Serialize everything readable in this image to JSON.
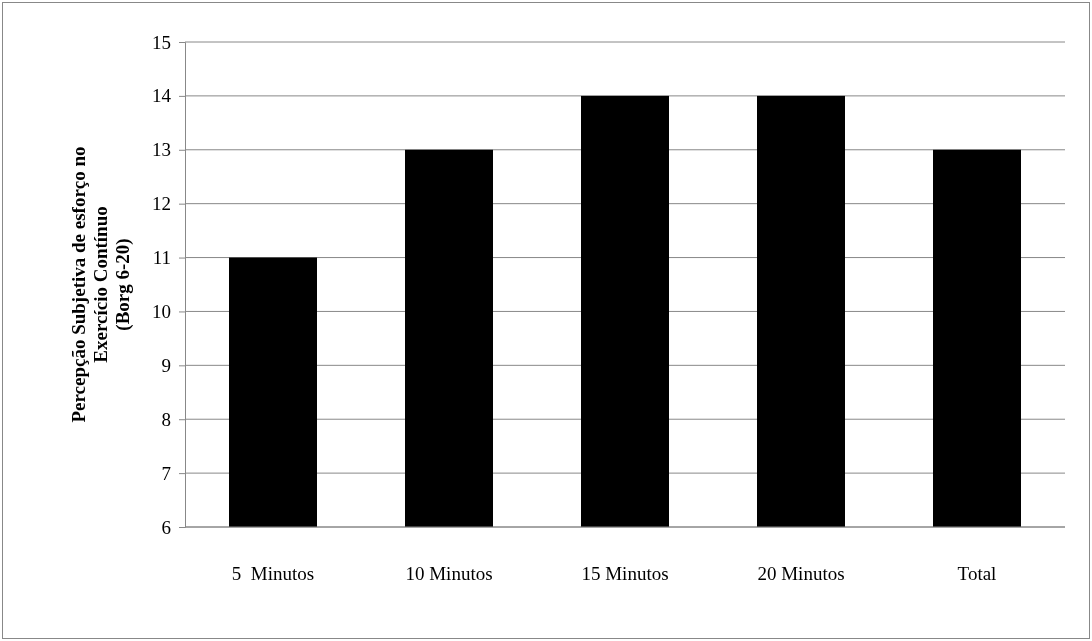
{
  "chart_data": {
    "type": "bar",
    "categories": [
      "5  Minutos",
      "10 Minutos",
      "15 Minutos",
      "20 Minutos",
      "Total"
    ],
    "values": [
      11,
      13,
      14,
      14,
      13
    ],
    "color": "#000000",
    "ylabel": "Percepção Subjetiva de esforço no\nExercício Contínuo\n(Borg 6-20)",
    "ylim": [
      6,
      15
    ],
    "yticks": [
      6,
      7,
      8,
      9,
      10,
      11,
      12,
      13,
      14,
      15
    ],
    "grid": "y"
  }
}
